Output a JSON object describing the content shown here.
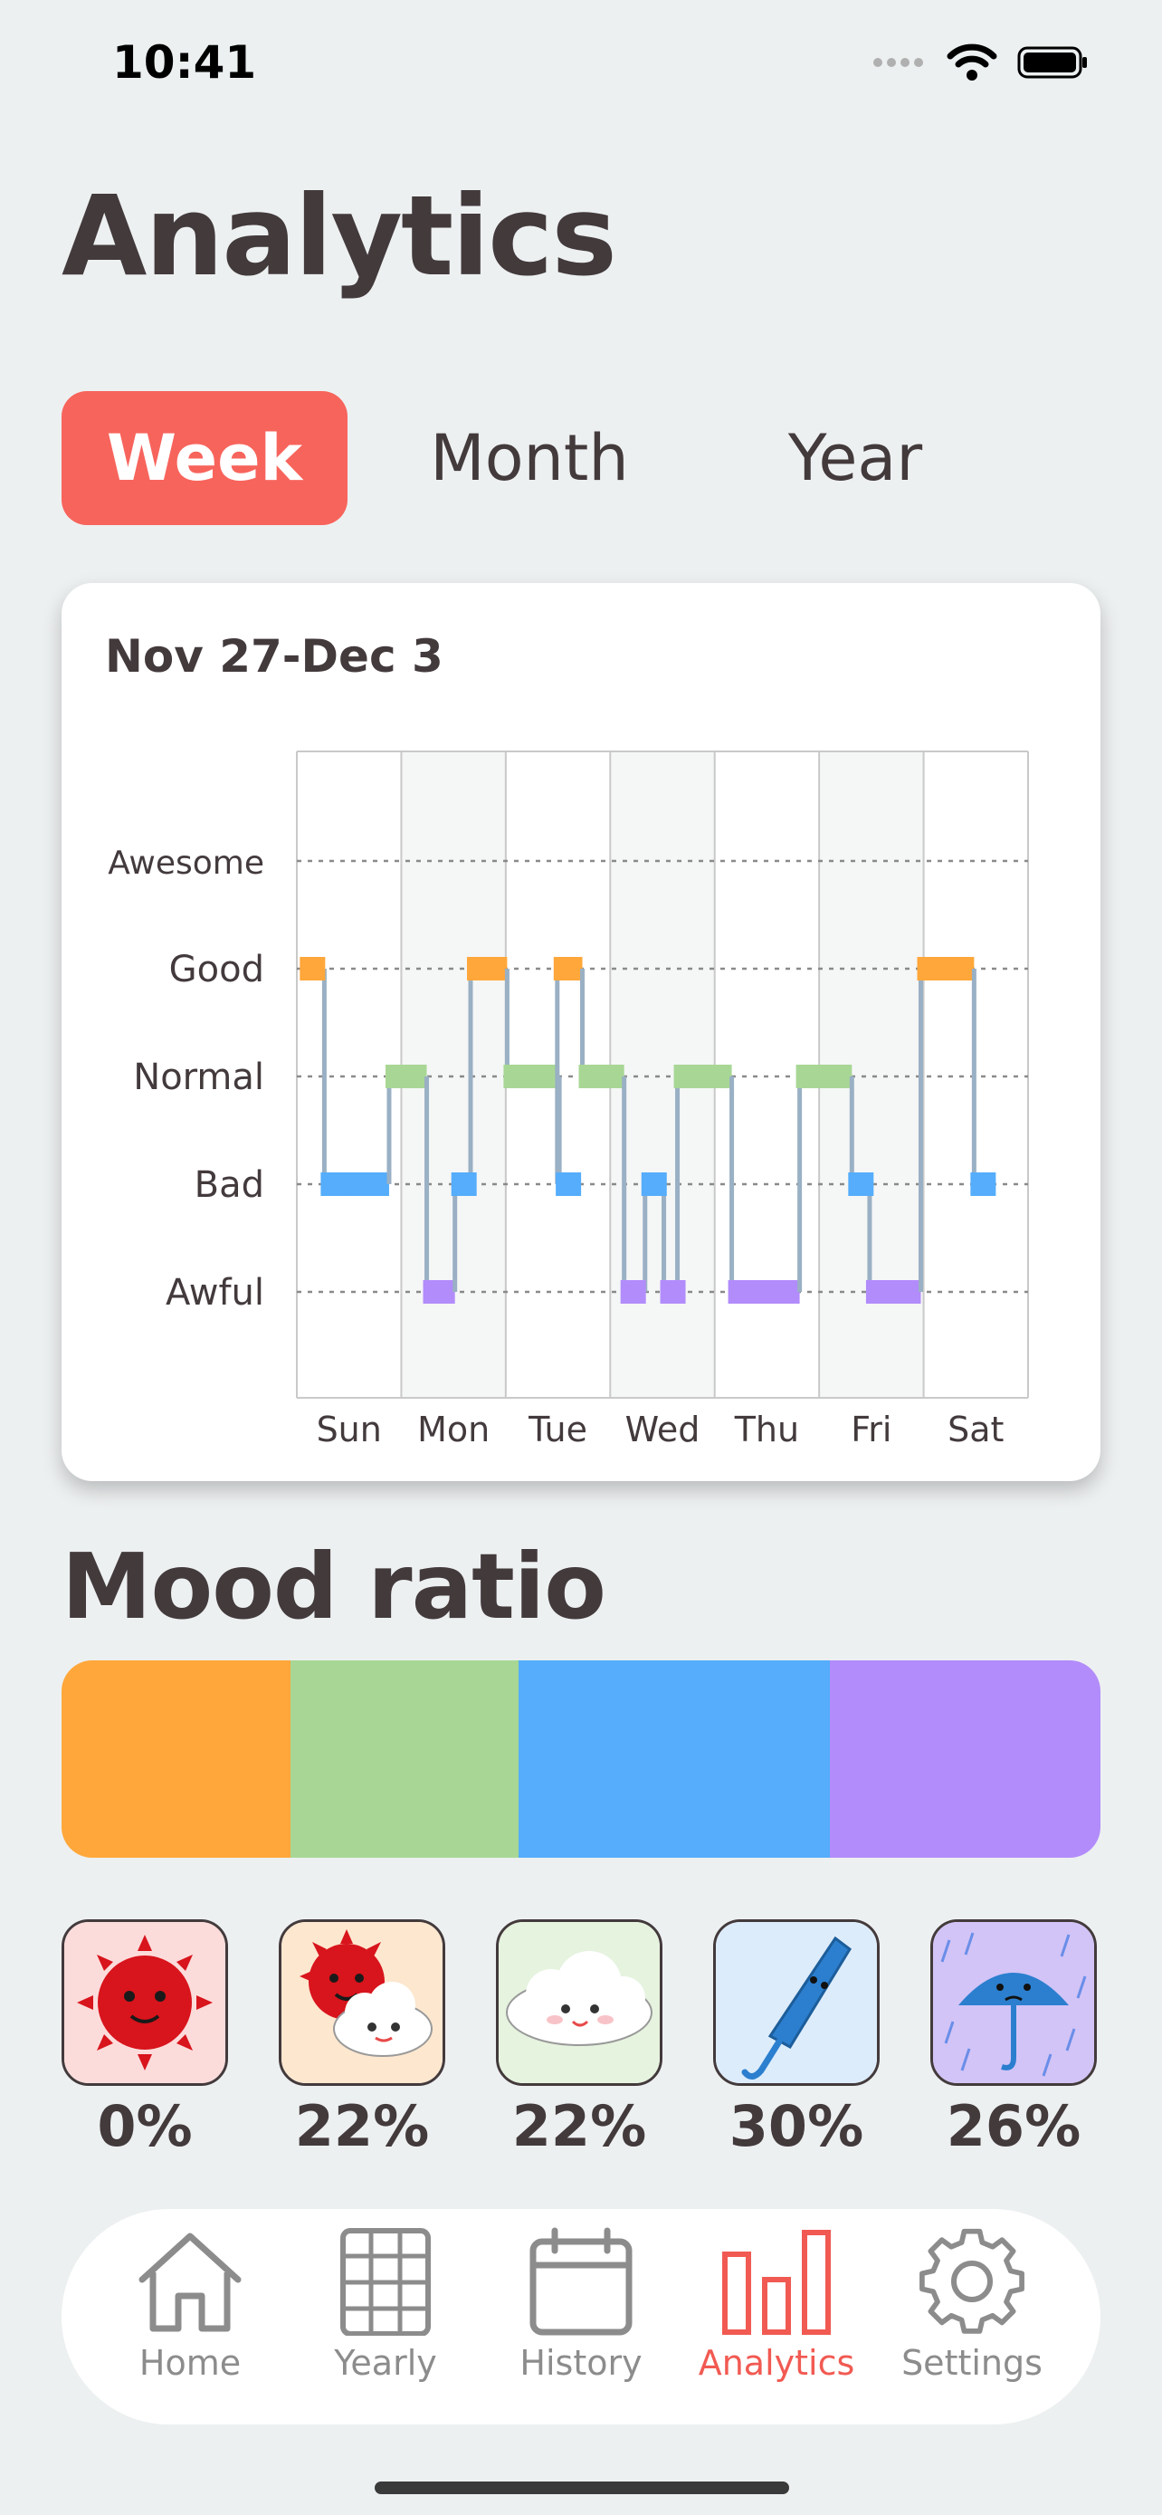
{
  "status": {
    "time": "10:41"
  },
  "page": {
    "title": "Analytics"
  },
  "tabs": [
    {
      "label": "Week",
      "selected": true
    },
    {
      "label": "Month",
      "selected": false
    },
    {
      "label": "Year",
      "selected": false
    }
  ],
  "chart_card": {
    "title": "Nov 27-Dec 3",
    "chart_data": {
      "type": "line",
      "subtype": "step",
      "x_categories": [
        "Sun",
        "Mon",
        "Tue",
        "Wed",
        "Thu",
        "Fri",
        "Sat"
      ],
      "y_categories": [
        "Awful",
        "Bad",
        "Normal",
        "Good",
        "Awesome"
      ],
      "grid": true,
      "colors": {
        "Good": "#ffa73a",
        "Normal": "#a8d795",
        "Bad": "#55adfb",
        "Awful": "#b28cfb",
        "Awesome": "#ff6a5e"
      },
      "series": [
        {
          "points": [
            {
              "x": 0.15,
              "y": "Good"
            },
            {
              "x": 0.35,
              "y": "Bad"
            },
            {
              "x": 0.97,
              "y": "Normal"
            },
            {
              "x": 1.33,
              "y": "Awful"
            },
            {
              "x": 1.6,
              "y": "Bad"
            },
            {
              "x": 1.75,
              "y": "Good"
            },
            {
              "x": 2.1,
              "y": "Normal"
            },
            {
              "x": 2.6,
              "y": "Bad"
            },
            {
              "x": 2.58,
              "y": "Good"
            },
            {
              "x": 2.82,
              "y": "Normal"
            },
            {
              "x": 3.22,
              "y": "Awful"
            },
            {
              "x": 3.42,
              "y": "Bad"
            },
            {
              "x": 3.6,
              "y": "Awful"
            },
            {
              "x": 3.73,
              "y": "Normal"
            },
            {
              "x": 4.25,
              "y": "Awful"
            },
            {
              "x": 4.9,
              "y": "Normal"
            },
            {
              "x": 5.4,
              "y": "Bad"
            },
            {
              "x": 5.57,
              "y": "Awful"
            },
            {
              "x": 6.06,
              "y": "Good"
            },
            {
              "x": 6.57,
              "y": "Bad"
            }
          ]
        }
      ]
    }
  },
  "mood_ratio": {
    "title": "Mood ratio",
    "segments": [
      {
        "mood": "Good",
        "fraction": 0.22,
        "color": "#ffa73a"
      },
      {
        "mood": "Normal",
        "fraction": 0.22,
        "color": "#a8d795"
      },
      {
        "mood": "Bad",
        "fraction": 0.3,
        "color": "#55adfb"
      },
      {
        "mood": "Awful",
        "fraction": 0.26,
        "color": "#b28cfb"
      }
    ],
    "moods": [
      {
        "icon": "sun-icon",
        "percent": "0%",
        "bg": "#fcdcdb"
      },
      {
        "icon": "sun-cloud-icon",
        "percent": "22%",
        "bg": "#fde7cf"
      },
      {
        "icon": "cloud-icon",
        "percent": "22%",
        "bg": "#e6f3df"
      },
      {
        "icon": "closed-umbrella-icon",
        "percent": "30%",
        "bg": "#ddecfb"
      },
      {
        "icon": "umbrella-rain-icon",
        "percent": "26%",
        "bg": "#d2c4f7"
      }
    ]
  },
  "nav": {
    "items": [
      {
        "label": "Home",
        "icon": "home-icon",
        "active": false
      },
      {
        "label": "Yearly",
        "icon": "grid-icon",
        "active": false
      },
      {
        "label": "History",
        "icon": "calendar-icon",
        "active": false
      },
      {
        "label": "Analytics",
        "icon": "bar-chart-icon",
        "active": true
      },
      {
        "label": "Settings",
        "icon": "gear-icon",
        "active": false
      }
    ]
  }
}
